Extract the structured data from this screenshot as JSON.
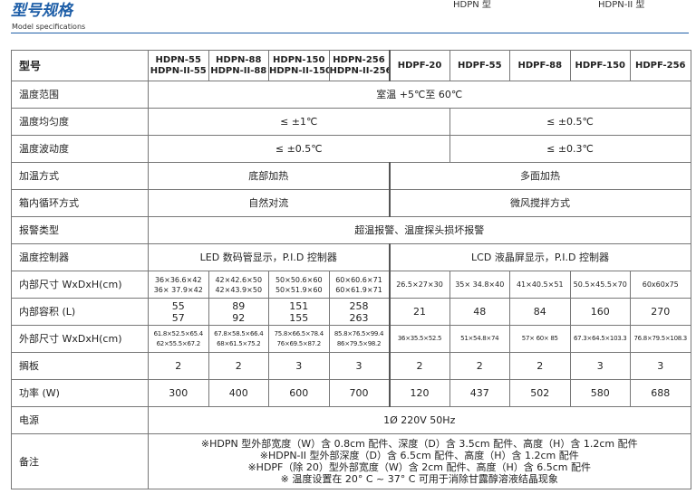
{
  "header": {
    "title": "型号规格",
    "subtitle": "Model specifications",
    "legend_hdpn": "HDPN 型",
    "legend_hdpn2": "HDPN-II 型",
    "accent": "#1f5fa8"
  },
  "table": {
    "model_label": "型号",
    "models": [
      [
        "HDPN-55",
        "HDPN-II-55"
      ],
      [
        "HDPN-88",
        "HDPN-II-88"
      ],
      [
        "HDPN-150",
        "HDPN-II-150"
      ],
      [
        "HDPN-256",
        "HDPN-II-256"
      ],
      [
        "HDPF-20"
      ],
      [
        "HDPF-55"
      ],
      [
        "HDPF-88"
      ],
      [
        "HDPF-150"
      ],
      [
        "HDPF-256"
      ]
    ],
    "temp_range": {
      "label": "温度范围",
      "value": "室温 +5℃至 60℃"
    },
    "uniformity": {
      "label": "温度均匀度",
      "a": "≤ ±1℃",
      "b": "≤ ±0.5℃"
    },
    "fluctuation": {
      "label": "温度波动度",
      "a": "≤ ±0.5℃",
      "b": "≤ ±0.3℃"
    },
    "heating": {
      "label": "加温方式",
      "a": "底部加热",
      "b": "多面加热"
    },
    "circulation": {
      "label": "箱内循环方式",
      "a": "自然对流",
      "b": "微风搅拌方式"
    },
    "alarm": {
      "label": "报警类型",
      "value": "超温报警、温度探头损坏报警"
    },
    "controller": {
      "label": "温度控制器",
      "a": "LED 数码管显示，P.I.D 控制器",
      "b": "LCD 液晶屏显示，P.I.D 控制器"
    },
    "inner_size": {
      "label": "内部尺寸 WxDxH(cm)",
      "values": [
        [
          "36×36.6×42",
          "36× 37.9×42"
        ],
        [
          "42×42.6×50",
          "42×43.9×50"
        ],
        [
          "50×50.6×60",
          "50×51.9×60"
        ],
        [
          "60×60.6×71",
          "60×61.9×71"
        ],
        [
          "26.5×27×30"
        ],
        [
          "35× 34.8×40"
        ],
        [
          "41×40.5×51"
        ],
        [
          "50.5×45.5×70"
        ],
        [
          "60x60x75"
        ]
      ]
    },
    "volume": {
      "label": "内部容积 (L)",
      "values": [
        [
          "55",
          "57"
        ],
        [
          "89",
          "92"
        ],
        [
          "151",
          "155"
        ],
        [
          "258",
          "263"
        ],
        [
          "21"
        ],
        [
          "48"
        ],
        [
          "84"
        ],
        [
          "160"
        ],
        [
          "270"
        ]
      ]
    },
    "outer_size": {
      "label": "外部尺寸 WxDxH(cm)",
      "values": [
        [
          "61.8×52.5×65.4",
          "62×55.5×67.2"
        ],
        [
          "67.8×58.5×66.4",
          "68×61.5×75.2"
        ],
        [
          "75.8×66.5×78.4",
          "76×69.5×87.2"
        ],
        [
          "85.8×76.5×99.4",
          "86×79.5×98.2"
        ],
        [
          "36×35.5×52.5"
        ],
        [
          "51×54.8×74"
        ],
        [
          "57× 60× 85"
        ],
        [
          "67.3×64.5×103.3"
        ],
        [
          "76.8×79.5×108.3"
        ]
      ]
    },
    "shelves": {
      "label": "搁板",
      "values": [
        "2",
        "2",
        "3",
        "3",
        "2",
        "2",
        "2",
        "3",
        "3"
      ]
    },
    "power": {
      "label": "功率 (W)",
      "values": [
        "300",
        "400",
        "600",
        "700",
        "120",
        "437",
        "502",
        "580",
        "688"
      ]
    },
    "supply": {
      "label": "电源",
      "value": "1Ø 220V 50Hz"
    },
    "notes": {
      "label": "备注",
      "lines": [
        "※HDPN 型外部宽度（W）含 0.8cm 配件、深度（D）含 3.5cm 配件、高度（H）含 1.2cm 配件",
        "※HDPN-II 型外部深度（D）含 6.5cm 配件、高度（H）含 1.2cm 配件",
        "※HDPF（除 20）型外部宽度（W）含 2cm 配件、高度（H）含 6.5cm 配件",
        "※ 温度设置在 20° C ~ 37° C 可用于消除甘露醇溶液结晶现象"
      ]
    }
  }
}
